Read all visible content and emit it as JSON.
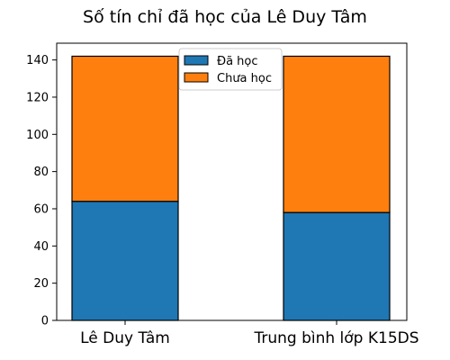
{
  "chart_data": {
    "type": "bar",
    "stacked": true,
    "title": "Số tín chỉ đã học của Lê Duy Tâm",
    "categories": [
      "Lê Duy Tâm",
      "Trung bình lớp K15DS"
    ],
    "series": [
      {
        "name": "Đã học",
        "values": [
          64,
          58
        ],
        "color": "#1f77b4"
      },
      {
        "name": "Chưa học",
        "values": [
          78,
          84
        ],
        "color": "#ff7f0e"
      }
    ],
    "xlabel": "",
    "ylabel": "",
    "ylim": [
      0,
      149
    ],
    "yticks": [
      0,
      20,
      40,
      60,
      80,
      100,
      120,
      140
    ],
    "grid": false,
    "legend_position": "top-center"
  }
}
